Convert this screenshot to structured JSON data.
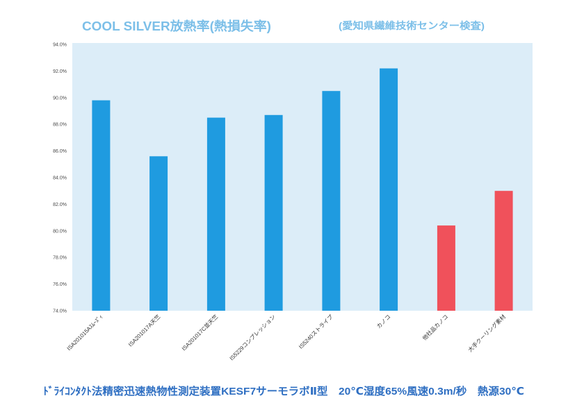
{
  "colors": {
    "title": "#7cbfe8",
    "footer": "#2f6fc2",
    "plot_bg": "#dcedf8"
  },
  "chart_data": {
    "type": "bar",
    "title": "COOL SILVER放熱率(熱損失率)",
    "note": "(愛知県繊維技術センター検査)",
    "footer": "ﾄﾞﾗｲｺﾝﾀｸﾄ法精密迅速熱物性測定装置KESF7サーモラボⅡ型　20℃湿度65%風速0.3m/秒　熱源30℃",
    "xlabel": "",
    "ylabel": "",
    "categories": [
      "ISA201015Aｽﾑｰｽﾞｨ",
      "ISA201017A天竺",
      "ISA201017C並天竺",
      "IS5229コンプレッション",
      "IS5240ストライプ",
      "カノコ",
      "他社品カノコ",
      "大手クーリング素材"
    ],
    "values": [
      89.8,
      85.6,
      88.5,
      88.7,
      90.5,
      92.2,
      80.4,
      83.0
    ],
    "bar_colors": [
      "#1f9be0",
      "#1f9be0",
      "#1f9be0",
      "#1f9be0",
      "#1f9be0",
      "#1f9be0",
      "#f0515b",
      "#f0515b"
    ],
    "ylim": [
      74,
      94
    ],
    "yticks": [
      74,
      76,
      78,
      80,
      82,
      84,
      86,
      88,
      90,
      92,
      94
    ],
    "ytick_labels": [
      "74.0%",
      "76.0%",
      "78.0%",
      "80.0%",
      "82.0%",
      "84.0%",
      "86.0%",
      "88.0%",
      "90.0%",
      "92.0%",
      "94.0%"
    ],
    "grid": false,
    "legend": "none"
  }
}
